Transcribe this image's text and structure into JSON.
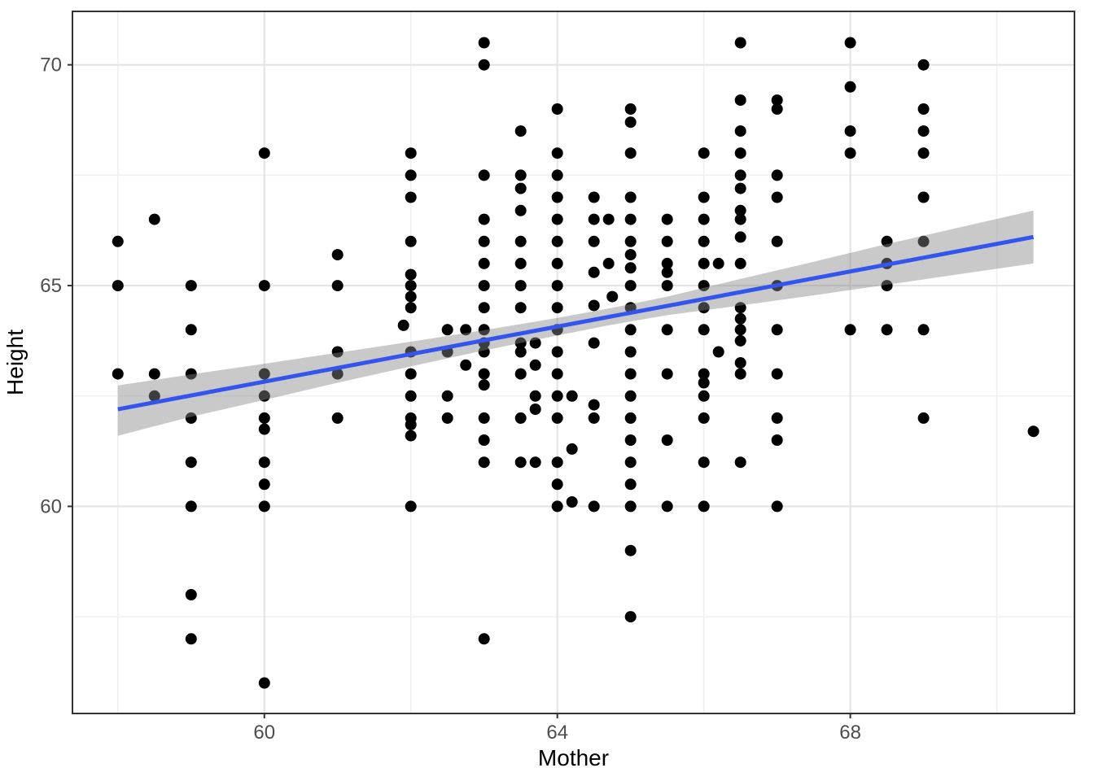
{
  "figure": {
    "background": "#FFFFFF",
    "panel_background": "#FFFFFF",
    "panel_border_color": "#333333",
    "grid_major_color": "#E4E4E4",
    "grid_minor_color": "#F0F0F0",
    "tick_mark_color": "#333333",
    "tick_label_color": "#4D4D4D",
    "axis_title_color": "#000000"
  },
  "chart_data": {
    "type": "scatter",
    "title": "",
    "xlabel": "Mother",
    "ylabel": "Height",
    "x_ticks": [
      60,
      64,
      68
    ],
    "x_minor_ticks": [
      58,
      62,
      66,
      70
    ],
    "y_ticks": [
      60,
      65,
      70
    ],
    "y_minor_ticks": [
      57.5,
      62.5,
      67.5
    ],
    "xlim": [
      57.38,
      71.06
    ],
    "ylim": [
      55.31,
      71.21
    ],
    "grid": "on",
    "legend": "none",
    "point_style": {
      "color": "#000000",
      "radius": 7
    },
    "smooth": {
      "method": "linear",
      "line": {
        "x1": 58,
        "y1": 62.2,
        "x2": 70.5,
        "y2": 66.1
      },
      "line_color": "#3355EE",
      "line_width": 5,
      "band_color": "rgba(135,135,135,0.45)",
      "ci_band": [
        {
          "x": 58.0,
          "lo": 61.6,
          "hi": 62.74
        },
        {
          "x": 59.0,
          "lo": 62.03,
          "hi": 62.99
        },
        {
          "x": 60.0,
          "lo": 62.41,
          "hi": 63.23
        },
        {
          "x": 61.0,
          "lo": 62.8,
          "hi": 63.48
        },
        {
          "x": 62.0,
          "lo": 63.17,
          "hi": 63.73
        },
        {
          "x": 63.0,
          "lo": 63.53,
          "hi": 63.99
        },
        {
          "x": 64.0,
          "lo": 63.87,
          "hi": 64.27
        },
        {
          "x": 64.7,
          "lo": 64.1,
          "hi": 64.48
        },
        {
          "x": 65.5,
          "lo": 64.33,
          "hi": 64.75
        },
        {
          "x": 66.5,
          "lo": 64.55,
          "hi": 65.15
        },
        {
          "x": 67.5,
          "lo": 64.78,
          "hi": 65.54
        },
        {
          "x": 68.5,
          "lo": 65.02,
          "hi": 65.94
        },
        {
          "x": 69.5,
          "lo": 65.26,
          "hi": 66.32
        },
        {
          "x": 70.5,
          "lo": 65.5,
          "hi": 66.7
        }
      ]
    },
    "points": [
      [
        58,
        66
      ],
      [
        58.5,
        66.5
      ],
      [
        60,
        68
      ],
      [
        63,
        70.5
      ],
      [
        63,
        70
      ],
      [
        64,
        69
      ],
      [
        65,
        69
      ],
      [
        65,
        68.7
      ],
      [
        63.5,
        68.5
      ],
      [
        62,
        68
      ],
      [
        64,
        68
      ],
      [
        65,
        68
      ],
      [
        66,
        68
      ],
      [
        62,
        67.5
      ],
      [
        63,
        67.5
      ],
      [
        63.5,
        67.5
      ],
      [
        64,
        67.5
      ],
      [
        63.5,
        67.2
      ],
      [
        62,
        67
      ],
      [
        64,
        67
      ],
      [
        64.5,
        67
      ],
      [
        65,
        67
      ],
      [
        66,
        67
      ],
      [
        63.5,
        66.7
      ],
      [
        63,
        66.5
      ],
      [
        64,
        66.5
      ],
      [
        64.5,
        66.5
      ],
      [
        64.7,
        66.5
      ],
      [
        65,
        66.5
      ],
      [
        65.5,
        66.5
      ],
      [
        66,
        66.5
      ],
      [
        62,
        66
      ],
      [
        63,
        66
      ],
      [
        63.5,
        66
      ],
      [
        64,
        66
      ],
      [
        64.5,
        66
      ],
      [
        65,
        66
      ],
      [
        65.5,
        66
      ],
      [
        66,
        66
      ],
      [
        66.5,
        70.5
      ],
      [
        68,
        70.5
      ],
      [
        69,
        70
      ],
      [
        68,
        69.5
      ],
      [
        66.5,
        69.2
      ],
      [
        67,
        69.2
      ],
      [
        67,
        69
      ],
      [
        69,
        69
      ],
      [
        66.5,
        68.5
      ],
      [
        68,
        68.5
      ],
      [
        69,
        68.5
      ],
      [
        66.5,
        68
      ],
      [
        68,
        68
      ],
      [
        69,
        68
      ],
      [
        66.5,
        67.5
      ],
      [
        67,
        67.5
      ],
      [
        66.5,
        67.2
      ],
      [
        67,
        67
      ],
      [
        69,
        67
      ],
      [
        66.5,
        66.7
      ],
      [
        66.5,
        66.5
      ],
      [
        66.5,
        66.1
      ],
      [
        67,
        66
      ],
      [
        68.5,
        66
      ],
      [
        69,
        66
      ],
      [
        61,
        65.7
      ],
      [
        58,
        65
      ],
      [
        59,
        65
      ],
      [
        60,
        65
      ],
      [
        61,
        65
      ],
      [
        59,
        64
      ],
      [
        61,
        63.5
      ],
      [
        58,
        63
      ],
      [
        58.5,
        63
      ],
      [
        59,
        63
      ],
      [
        60,
        63
      ],
      [
        61,
        63
      ],
      [
        58.5,
        62.5
      ],
      [
        60,
        62.5
      ],
      [
        59,
        62
      ],
      [
        60,
        62
      ],
      [
        61,
        62
      ],
      [
        60,
        61.75
      ],
      [
        59,
        61
      ],
      [
        60,
        61
      ],
      [
        63,
        65.5
      ],
      [
        63.5,
        65.5
      ],
      [
        64,
        65.5
      ],
      [
        64.7,
        65.5
      ],
      [
        65,
        65.7
      ],
      [
        65,
        65.4
      ],
      [
        65.5,
        65.5
      ],
      [
        66,
        65.5
      ],
      [
        66.2,
        65.5
      ],
      [
        64.5,
        65.3
      ],
      [
        65.5,
        65.3
      ],
      [
        65.5,
        65
      ],
      [
        62,
        65.25
      ],
      [
        62,
        65
      ],
      [
        63,
        65
      ],
      [
        63.5,
        65
      ],
      [
        64,
        65
      ],
      [
        65,
        65
      ],
      [
        66,
        65
      ],
      [
        62,
        64.75
      ],
      [
        62,
        64.5
      ],
      [
        63,
        64.5
      ],
      [
        63.5,
        64.5
      ],
      [
        64,
        64.5
      ],
      [
        64.5,
        64.55
      ],
      [
        64.75,
        64.75
      ],
      [
        65,
        64.5
      ],
      [
        66,
        64.5
      ],
      [
        61.9,
        64.1
      ],
      [
        62.5,
        64
      ],
      [
        62.75,
        64
      ],
      [
        63,
        64
      ],
      [
        64,
        64
      ],
      [
        65,
        64
      ],
      [
        65.5,
        64
      ],
      [
        66,
        64
      ],
      [
        62,
        63.5
      ],
      [
        62.5,
        63.5
      ],
      [
        63,
        63.7
      ],
      [
        63,
        63.5
      ],
      [
        63.5,
        63.7
      ],
      [
        63.5,
        63.5
      ],
      [
        63.7,
        63.7
      ],
      [
        64,
        63.5
      ],
      [
        64.5,
        63.7
      ],
      [
        65,
        63.5
      ],
      [
        66.2,
        63.5
      ],
      [
        62.75,
        63.2
      ],
      [
        63.7,
        63.2
      ],
      [
        62,
        63
      ],
      [
        63,
        63
      ],
      [
        63.5,
        63
      ],
      [
        64,
        63
      ],
      [
        65,
        63
      ],
      [
        65.5,
        63
      ],
      [
        66,
        63
      ],
      [
        63,
        62.75
      ],
      [
        66,
        62.8
      ],
      [
        66,
        62.5
      ],
      [
        62,
        62.5
      ],
      [
        62.5,
        62.5
      ],
      [
        63.7,
        62.5
      ],
      [
        64,
        62.5
      ],
      [
        64.2,
        62.5
      ],
      [
        65,
        62.5
      ],
      [
        63.7,
        62.2
      ],
      [
        64.5,
        62.3
      ],
      [
        62,
        62
      ],
      [
        62.5,
        62
      ],
      [
        63,
        62
      ],
      [
        63.5,
        62
      ],
      [
        64,
        62
      ],
      [
        64.5,
        62
      ],
      [
        65,
        62
      ],
      [
        66,
        62
      ],
      [
        62,
        61.85
      ],
      [
        62,
        61.6
      ],
      [
        63,
        61.5
      ],
      [
        65,
        61.5
      ],
      [
        65.5,
        61.5
      ],
      [
        64.2,
        61.3
      ],
      [
        63,
        61
      ],
      [
        63.5,
        61
      ],
      [
        63.7,
        61
      ],
      [
        64,
        61
      ],
      [
        65,
        61
      ],
      [
        66,
        61
      ],
      [
        66.5,
        65.5
      ],
      [
        67,
        65
      ],
      [
        68.5,
        65.5
      ],
      [
        68.5,
        65
      ],
      [
        66.5,
        64.5
      ],
      [
        66.5,
        64.25
      ],
      [
        66.5,
        64
      ],
      [
        66.5,
        63.75
      ],
      [
        66.5,
        63.25
      ],
      [
        66.5,
        63
      ],
      [
        67,
        64
      ],
      [
        68,
        64
      ],
      [
        68.5,
        64
      ],
      [
        69,
        64
      ],
      [
        67,
        63
      ],
      [
        67,
        62
      ],
      [
        69,
        62
      ],
      [
        67,
        61.5
      ],
      [
        66.5,
        61
      ],
      [
        70.5,
        61.7
      ],
      [
        60,
        60.5
      ],
      [
        59,
        60
      ],
      [
        60,
        60
      ],
      [
        59,
        58
      ],
      [
        59,
        57
      ],
      [
        60,
        56
      ],
      [
        64,
        60.5
      ],
      [
        65,
        60.5
      ],
      [
        62,
        60
      ],
      [
        64,
        60
      ],
      [
        64.2,
        60.1
      ],
      [
        64.5,
        60
      ],
      [
        65,
        60
      ],
      [
        65.5,
        60
      ],
      [
        66,
        60
      ],
      [
        65,
        59
      ],
      [
        65,
        57.5
      ],
      [
        63,
        57
      ],
      [
        67,
        60
      ]
    ]
  }
}
